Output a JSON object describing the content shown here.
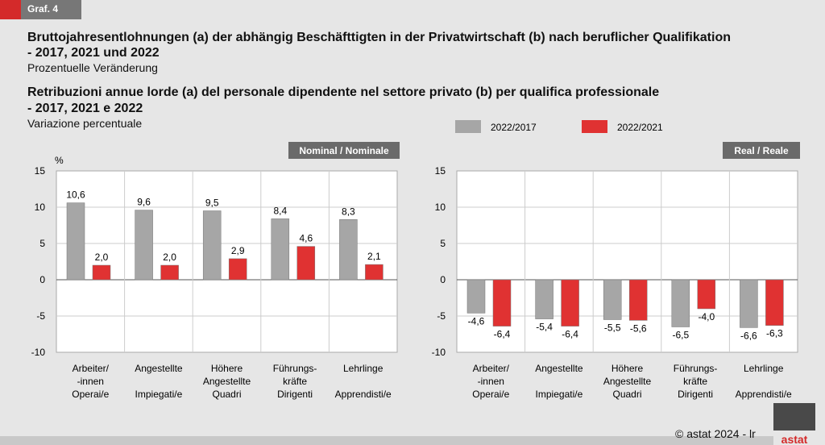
{
  "badge": "Graf. 4",
  "title_de": "Bruttojahresentlohnungen (a) der abhängig Beschäfttigten in der Privatwirtschaft (b) nach beruflicher Qualifikation",
  "title_de_2": "- 2017, 2021 und 2022",
  "subtitle_de": "Prozentuelle Veränderung",
  "title_it": "Retribuzioni annue lorde (a) del personale dipendente nel settore privato (b) per qualifica professionale",
  "title_it_2": "- 2017, 2021 e 2022",
  "subtitle_it": "Variazione percentuale",
  "footer": "© astat 2024 - lr",
  "logo_text": "astat",
  "colors": {
    "gray": "#a6a6a6",
    "red": "#e03232"
  },
  "chart_data": [
    {
      "type": "bar",
      "title": "Nominal / Nominale",
      "ylabel": "%",
      "ylim": [
        -10,
        15
      ],
      "yticks": [
        15,
        10,
        5,
        0,
        -5,
        -10
      ],
      "categories": [
        [
          "Arbeiter/",
          "-innen",
          "Operai/e"
        ],
        [
          "Angestellte",
          "",
          "Impiegati/e"
        ],
        [
          "Höhere",
          "Angestellte",
          "Quadri"
        ],
        [
          "Führungs-",
          "kräfte",
          "Dirigenti"
        ],
        [
          "Lehrlinge",
          "",
          "Apprendisti/e"
        ]
      ],
      "series": [
        {
          "name": "2022/2017",
          "values": [
            10.6,
            9.6,
            9.5,
            8.4,
            8.3
          ]
        },
        {
          "name": "2022/2021",
          "values": [
            2.0,
            2.0,
            2.9,
            4.6,
            2.1
          ]
        }
      ]
    },
    {
      "type": "bar",
      "title": "Real / Reale",
      "ylim": [
        -10,
        15
      ],
      "yticks": [
        15,
        10,
        5,
        0,
        -5,
        -10
      ],
      "categories": [
        [
          "Arbeiter/",
          "-innen",
          "Operai/e"
        ],
        [
          "Angestellte",
          "",
          "Impiegati/e"
        ],
        [
          "Höhere",
          "Angestellte",
          "Quadri"
        ],
        [
          "Führungs-",
          "kräfte",
          "Dirigenti"
        ],
        [
          "Lehrlinge",
          "",
          "Apprendisti/e"
        ]
      ],
      "series": [
        {
          "name": "2022/2017",
          "values": [
            -4.6,
            -5.4,
            -5.5,
            -6.5,
            -6.6
          ]
        },
        {
          "name": "2022/2021",
          "values": [
            -6.4,
            -6.4,
            -5.6,
            -4.0,
            -6.3
          ]
        }
      ]
    }
  ]
}
